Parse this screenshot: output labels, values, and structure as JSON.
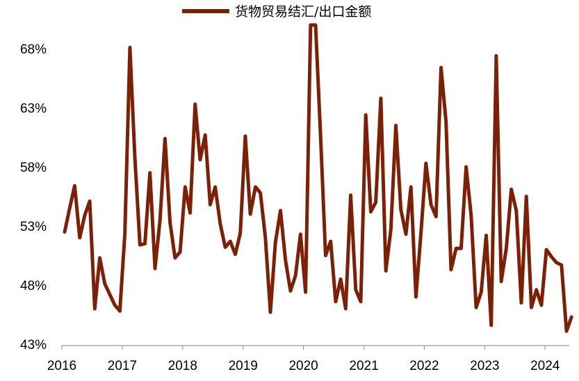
{
  "chart_data": {
    "type": "line",
    "title": "",
    "xlabel": "",
    "ylabel": "",
    "ylim": [
      43,
      70
    ],
    "y_ticks": [
      43,
      48,
      53,
      58,
      63,
      68
    ],
    "y_tick_labels": [
      "43%",
      "48%",
      "53%",
      "58%",
      "63%",
      "68%"
    ],
    "x_start": 2016,
    "x_end": 2024.4,
    "x_ticks": [
      2016,
      2017,
      2018,
      2019,
      2020,
      2021,
      2022,
      2023,
      2024
    ],
    "x_tick_labels": [
      "2016",
      "2017",
      "2018",
      "2019",
      "2020",
      "2021",
      "2022",
      "2023",
      "2024"
    ],
    "grid": false,
    "legend": "top-center",
    "series": [
      {
        "name": "货物贸易结汇/出口金额",
        "color": "#7b2108",
        "values": [
          52.5,
          54.5,
          56.4,
          52.0,
          53.9,
          55.1,
          46.0,
          50.3,
          48.1,
          47.2,
          46.3,
          45.8,
          52.3,
          68.1,
          58.7,
          51.4,
          51.5,
          57.5,
          49.4,
          53.5,
          60.4,
          53.3,
          50.3,
          50.8,
          56.3,
          54.1,
          63.3,
          58.6,
          60.7,
          54.8,
          56.3,
          53.2,
          51.2,
          51.7,
          50.6,
          52.4,
          60.6,
          54.0,
          56.3,
          55.8,
          52.0,
          45.7,
          51.6,
          54.3,
          50.1,
          47.5,
          48.8,
          52.3,
          47.4,
          70.0,
          70.0,
          60.6,
          50.5,
          51.7,
          46.6,
          48.5,
          46.0,
          55.6,
          47.6,
          46.6,
          62.4,
          54.2,
          55.0,
          63.8,
          49.2,
          52.7,
          61.5,
          54.4,
          52.3,
          56.3,
          47.0,
          52.4,
          58.3,
          54.8,
          53.8,
          66.4,
          61.8,
          49.3,
          51.1,
          51.1,
          58.0,
          53.9,
          46.1,
          47.4,
          52.2,
          44.6,
          67.4,
          48.3,
          51.1,
          56.1,
          54.3,
          46.5,
          55.5,
          46.1,
          47.6,
          46.3,
          51.0,
          50.4,
          49.9,
          49.7,
          44.1,
          45.3
        ]
      }
    ]
  }
}
